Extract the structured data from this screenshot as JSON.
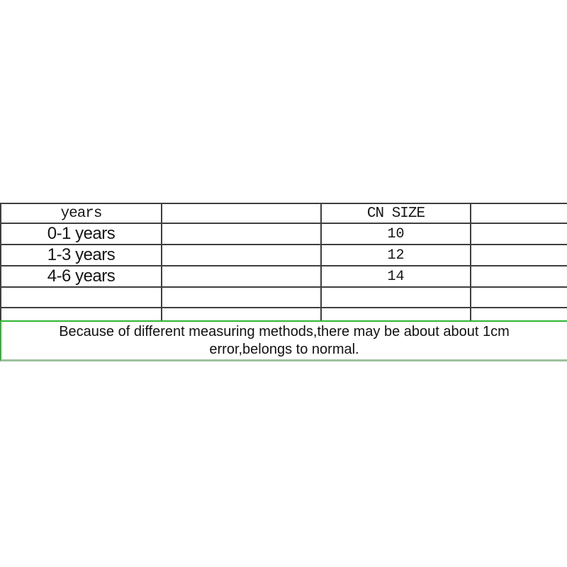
{
  "size_chart": {
    "header": [
      "years",
      "",
      "CN SIZE",
      ""
    ],
    "rows": [
      [
        "0-1 years",
        "",
        "10",
        ""
      ],
      [
        "1-3 years",
        "",
        "12",
        ""
      ],
      [
        "4-6 years",
        "",
        "14",
        ""
      ],
      [
        "",
        "",
        "",
        ""
      ],
      [
        "",
        "",
        "",
        ""
      ]
    ]
  },
  "note": {
    "line1": "Because of different measuring methods,there may be about about 1cm",
    "line2": "error,belongs to normal."
  },
  "colors": {
    "table_border": "#3f3f3f",
    "note_border_top": "#32b432",
    "note_border_bottom": "#9dc09d",
    "text": "#161616",
    "background": "#ffffff"
  }
}
